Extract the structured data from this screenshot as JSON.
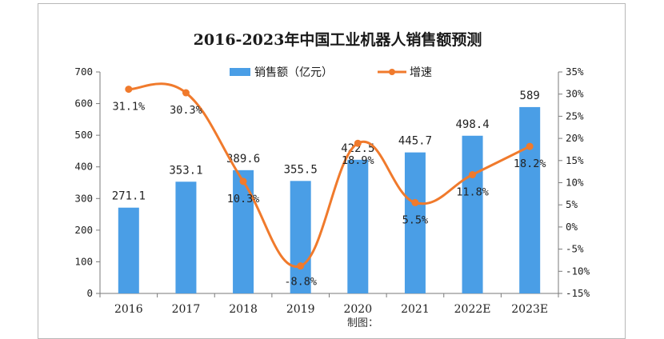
{
  "chart_data": {
    "type": "bar+line",
    "title": "2016-2023年中国工业机器人销售额预测",
    "categories": [
      "2016",
      "2017",
      "2018",
      "2019",
      "2020",
      "2021",
      "2022E",
      "2023E"
    ],
    "series": [
      {
        "name": "销售额（亿元）",
        "type": "bar",
        "axis": "left",
        "color": "#4a9ee6",
        "values": [
          271.1,
          353.1,
          389.6,
          355.5,
          422.5,
          445.7,
          498.4,
          589
        ],
        "labels": [
          "271.1",
          "353.1",
          "389.6",
          "355.5",
          "422.5",
          "445.7",
          "498.4",
          "589"
        ]
      },
      {
        "name": "增速",
        "type": "line",
        "axis": "right",
        "color": "#f07a2c",
        "values": [
          31.1,
          30.3,
          10.3,
          -8.8,
          18.9,
          5.5,
          11.8,
          18.2
        ],
        "labels": [
          "31.1%",
          "30.3%",
          "10.3%",
          "-8.8%",
          "18.9%",
          "5.5%",
          "11.8%",
          "18.2%"
        ]
      }
    ],
    "ylim_left": [
      0,
      700
    ],
    "yticks_left": [
      "0",
      "100",
      "200",
      "300",
      "400",
      "500",
      "600",
      "700"
    ],
    "ylim_right": [
      -15,
      35
    ],
    "yticks_right": [
      "-15%",
      "-10%",
      "-5%",
      "0%",
      "5%",
      "10%",
      "15%",
      "20%",
      "25%",
      "30%",
      "35%"
    ],
    "grid": false,
    "legend_position": "top-center"
  },
  "source_partial": "制图："
}
